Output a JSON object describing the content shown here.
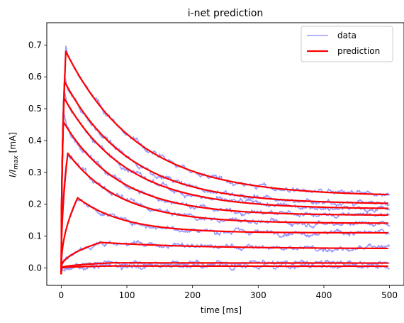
{
  "chart_data": {
    "type": "line",
    "title": "i-net prediction",
    "xlabel": "time [ms]",
    "ylabel_main": "I/I",
    "ylabel_sub": "max",
    "ylabel_unit": " [mA]",
    "xlim": [
      -22,
      522
    ],
    "ylim": [
      -0.055,
      0.77
    ],
    "xticks": [
      0,
      100,
      200,
      300,
      400,
      500
    ],
    "yticks": [
      0.0,
      0.1,
      0.2,
      0.3,
      0.4,
      0.5,
      0.6,
      0.7
    ],
    "grid": false,
    "legend": {
      "placement": "top-right",
      "entries": [
        {
          "label": "data",
          "color": "#9999ff"
        },
        {
          "label": "prediction",
          "color": "#ff0000"
        }
      ]
    },
    "colors": {
      "data": "#9999ff",
      "prediction": "#ff0000"
    },
    "x_range": [
      0,
      500
    ],
    "traces": [
      {
        "peak_t": 7,
        "peak": 0.68,
        "end": 0.225,
        "tau": 110
      },
      {
        "peak_t": 5,
        "peak": 0.585,
        "end": 0.2,
        "tau": 100
      },
      {
        "peak_t": 4,
        "peak": 0.535,
        "end": 0.185,
        "tau": 95
      },
      {
        "peak_t": 3,
        "peak": 0.46,
        "end": 0.165,
        "tau": 85
      },
      {
        "peak_t": 10,
        "peak": 0.36,
        "end": 0.14,
        "tau": 80
      },
      {
        "peak_t": 25,
        "peak": 0.22,
        "end": 0.11,
        "tau": 70
      },
      {
        "peak_t": 60,
        "peak": 0.08,
        "end": 0.06,
        "tau": 150
      },
      {
        "peak_t": 80,
        "peak": 0.016,
        "end": 0.015,
        "tau": 200
      },
      {
        "peak_t": 80,
        "peak": 0.006,
        "end": 0.005,
        "tau": 200
      }
    ]
  }
}
